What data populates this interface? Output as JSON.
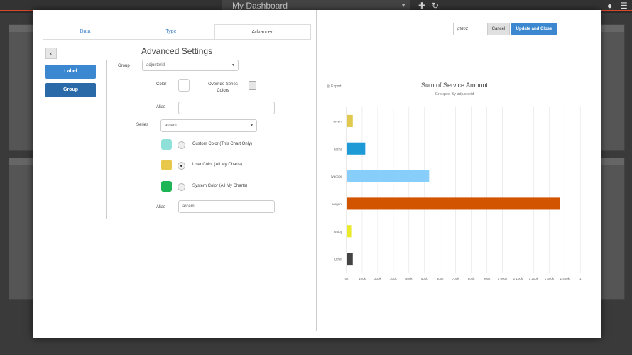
{
  "dashboard": {
    "title": "My Dashboard"
  },
  "tabs": [
    {
      "label": "Data"
    },
    {
      "label": "Type"
    },
    {
      "label": "Advanced"
    }
  ],
  "advanced": {
    "title": "Advanced Settings",
    "side_buttons": [
      {
        "label": "Label",
        "color": "#3b87d0"
      },
      {
        "label": "Group",
        "color": "#2a6aa8"
      }
    ],
    "group_label": "Group",
    "group_value": "adjusterid",
    "color_label": "Color",
    "override_label": "Override Series Colors",
    "alias_label": "Alias",
    "alias_value": "",
    "series_label": "Series",
    "series_value": "arcem",
    "color_options": [
      {
        "label": "Custom Color (This Chart Only)",
        "swatch": "#8fe0d8",
        "selected": false
      },
      {
        "label": "User Color (All My Charts)",
        "swatch": "#e8c84a",
        "selected": true
      },
      {
        "label": "System Color (All My Charts)",
        "swatch": "#1db556",
        "selected": false
      }
    ],
    "alias2_label": "Alias",
    "alias2_value": "arcem"
  },
  "toolbar": {
    "search_value": "gfd02",
    "cancel_label": "Cancel",
    "update_label": "Update and Close"
  },
  "export_label": "Export",
  "chart_data": {
    "type": "bar",
    "orientation": "horizontal",
    "title": "Sum of Service Amount",
    "subtitle": "Grouped By adjusterid",
    "categories": [
      "arcem",
      "bacha",
      "fvacobe",
      "bargent",
      "antiby",
      "Other"
    ],
    "values": [
      40000,
      120000,
      530000,
      1370000,
      30000,
      40000
    ],
    "colors": [
      "#e0c94e",
      "#1e9bd7",
      "#87cefa",
      "#d35400",
      "#e9ea2a",
      "#444444"
    ],
    "xlim": [
      0,
      1450000
    ],
    "x_ticks": [
      "0k",
      "100k",
      "200k",
      "300k",
      "400k",
      "500k",
      "600k",
      "700k",
      "800k",
      "900k",
      "1 000k",
      "1 100k",
      "1 200k",
      "1 300k",
      "1 400k",
      "1"
    ],
    "grid": true
  }
}
